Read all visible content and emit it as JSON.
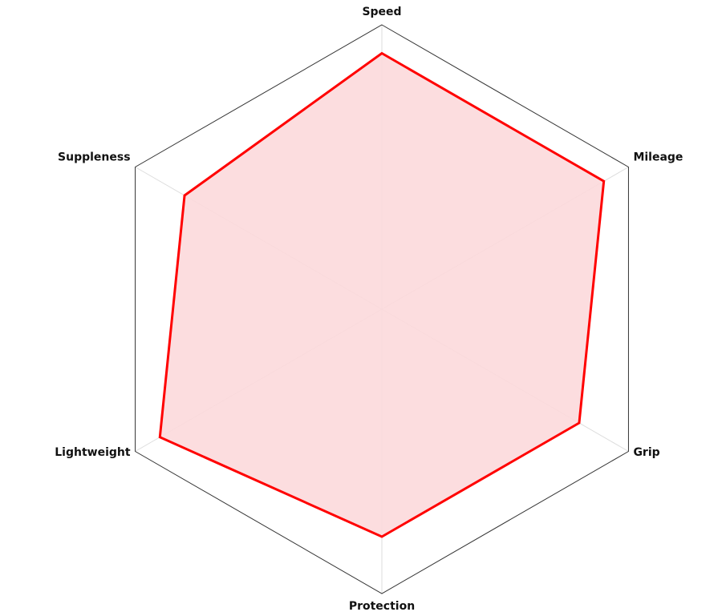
{
  "chart_data": {
    "type": "radar",
    "categories": [
      "Speed",
      "Mileage",
      "Grip",
      "Protection",
      "Lightweight",
      "Suppleness"
    ],
    "values": [
      90,
      90,
      80,
      80,
      90,
      80
    ],
    "rlim": [
      0,
      100
    ],
    "color": "#ff0000",
    "fill": "#fcd9db"
  }
}
